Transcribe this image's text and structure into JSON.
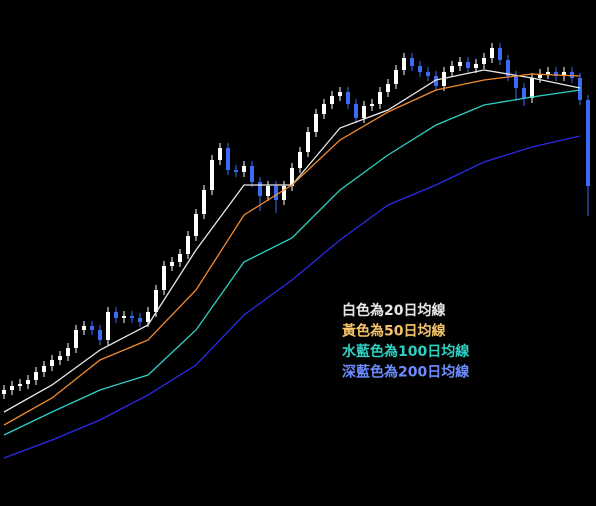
{
  "chart_data": {
    "type": "candlestick",
    "xlim": [
      -0.5,
      74
    ],
    "ylim": [
      0,
      506
    ],
    "candles": {
      "up_color": "#ffffff",
      "down_color": "#3b6cf5",
      "open": [
        112,
        116,
        120,
        122,
        126,
        134,
        140,
        146,
        150,
        158,
        176,
        180,
        176,
        166,
        194,
        188,
        190,
        188,
        184,
        194,
        216,
        240,
        244,
        252,
        270,
        292,
        316,
        346,
        358,
        336,
        334,
        340,
        324,
        310,
        320,
        306,
        320,
        338,
        354,
        374,
        392,
        402,
        410,
        414,
        402,
        388,
        400,
        402,
        414,
        422,
        436,
        448,
        440,
        434,
        430,
        420,
        434,
        440,
        444,
        438,
        442,
        448,
        458,
        446,
        430,
        418,
        408,
        428,
        432,
        434,
        430,
        434,
        428,
        406
      ],
      "high": [
        121,
        125,
        127,
        131,
        139,
        145,
        151,
        155,
        163,
        181,
        185,
        185,
        181,
        199,
        199,
        195,
        195,
        193,
        199,
        221,
        245,
        249,
        257,
        275,
        297,
        321,
        351,
        363,
        363,
        341,
        345,
        345,
        329,
        325,
        325,
        325,
        343,
        359,
        379,
        397,
        407,
        415,
        419,
        419,
        407,
        405,
        407,
        419,
        427,
        441,
        453,
        453,
        445,
        439,
        435,
        439,
        445,
        449,
        449,
        447,
        453,
        463,
        463,
        451,
        435,
        423,
        433,
        437,
        439,
        439,
        439,
        439,
        433,
        411
      ],
      "low": [
        107,
        111,
        115,
        117,
        121,
        129,
        135,
        141,
        145,
        153,
        171,
        171,
        161,
        161,
        183,
        183,
        183,
        179,
        179,
        189,
        211,
        235,
        239,
        247,
        265,
        287,
        311,
        341,
        331,
        329,
        329,
        319,
        295,
        305,
        293,
        301,
        315,
        333,
        349,
        369,
        387,
        397,
        405,
        397,
        383,
        383,
        395,
        397,
        409,
        417,
        431,
        435,
        429,
        425,
        415,
        415,
        429,
        435,
        433,
        433,
        437,
        443,
        441,
        425,
        405,
        400,
        403,
        423,
        427,
        425,
        425,
        423,
        401,
        290
      ],
      "close": [
        116,
        120,
        122,
        126,
        134,
        140,
        146,
        150,
        158,
        176,
        180,
        176,
        166,
        194,
        188,
        190,
        188,
        184,
        194,
        216,
        240,
        244,
        252,
        270,
        292,
        316,
        346,
        358,
        336,
        334,
        340,
        324,
        310,
        320,
        306,
        320,
        338,
        354,
        374,
        392,
        402,
        410,
        414,
        402,
        388,
        400,
        402,
        414,
        422,
        436,
        448,
        440,
        434,
        430,
        420,
        434,
        440,
        444,
        438,
        442,
        448,
        458,
        446,
        430,
        418,
        408,
        428,
        432,
        434,
        430,
        434,
        428,
        406,
        320
      ]
    },
    "series": [
      {
        "name": "白色為20日均線",
        "color": "#e8e8e8",
        "x": [
          0,
          6,
          12,
          18,
          24,
          30,
          36,
          42,
          48,
          54,
          60,
          66,
          72
        ],
        "values": [
          94,
          121,
          156,
          181,
          256,
          321,
          321,
          378,
          396,
          426,
          436,
          428,
          418
        ]
      },
      {
        "name": "黃色為50日均線",
        "color": "#f08a30",
        "legend_color": "#f5c46a",
        "x": [
          0,
          6,
          12,
          18,
          24,
          30,
          36,
          42,
          48,
          54,
          60,
          66,
          72
        ],
        "values": [
          81,
          108,
          146,
          166,
          216,
          291,
          321,
          366,
          394,
          416,
          426,
          432,
          430
        ]
      },
      {
        "name": "水藍色為100日均線",
        "color": "#2fd0c4",
        "x": [
          0,
          6,
          12,
          18,
          24,
          30,
          36,
          42,
          48,
          54,
          60,
          66,
          72
        ],
        "values": [
          71,
          94,
          116,
          131,
          176,
          244,
          268,
          316,
          351,
          381,
          401,
          409,
          416
        ]
      },
      {
        "name": "深藍色為200日均線",
        "color": "#2a2ae8",
        "legend_color": "#6c8cff",
        "x": [
          0,
          6,
          12,
          18,
          24,
          30,
          36,
          42,
          48,
          54,
          60,
          66,
          72
        ],
        "values": [
          48,
          66,
          86,
          111,
          141,
          191,
          226,
          266,
          301,
          321,
          344,
          359,
          370
        ]
      }
    ]
  }
}
